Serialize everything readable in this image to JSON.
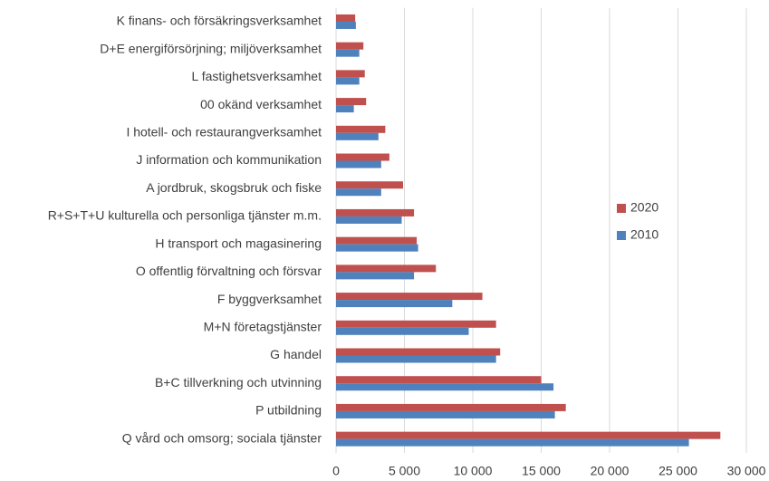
{
  "chart_data": {
    "type": "barh",
    "categories": [
      "K finans- och försäkringsverksamhet",
      "D+E energiförsörjning; miljöverksamhet",
      "L fastighetsverksamhet",
      "00 okänd verksamhet",
      "I hotell- och restaurangverksamhet",
      "J information och kommunikation",
      "A jordbruk, skogsbruk och fiske",
      "R+S+T+U kulturella och personliga tjänster m.m.",
      "H transport och magasinering",
      "O offentlig förvaltning och försvar",
      "F byggverksamhet",
      "M+N företagstjänster",
      "G handel",
      "B+C tillverkning och utvinning",
      "P utbildning",
      "Q vård och omsorg; sociala tjänster"
    ],
    "series": [
      {
        "name": "2020",
        "color": "#c0504d",
        "values": [
          1400,
          2000,
          2100,
          2200,
          3600,
          3900,
          4900,
          5700,
          5900,
          7300,
          10700,
          11700,
          12000,
          15000,
          16800,
          28100
        ]
      },
      {
        "name": "2010",
        "color": "#4f81bd",
        "values": [
          1450,
          1700,
          1700,
          1300,
          3100,
          3300,
          3300,
          4800,
          6000,
          5700,
          8500,
          9700,
          11700,
          15900,
          16000,
          25800
        ]
      }
    ],
    "xlim": [
      0,
      30000
    ],
    "xticks": [
      0,
      {
        "value": 5000,
        "label": "5 000"
      },
      {
        "value": 10000,
        "label": "10 000"
      },
      {
        "value": 15000,
        "label": "15 000"
      },
      {
        "value": 20000,
        "label": "20 000"
      },
      {
        "value": 25000,
        "label": "25 000"
      },
      {
        "value": 30000,
        "label": "30 000"
      }
    ],
    "grid": true,
    "legend": "right"
  }
}
